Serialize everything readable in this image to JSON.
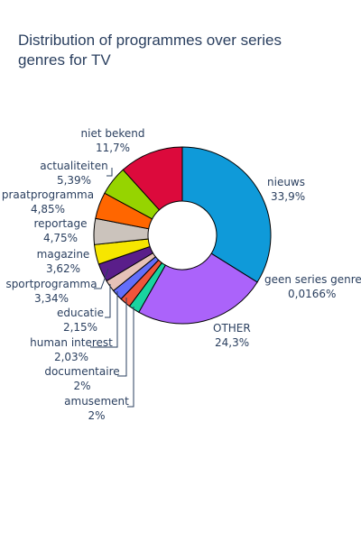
{
  "chart_data": {
    "type": "pie",
    "hole": true,
    "title": "Distribution of programmes over series genres for TV",
    "title_lines": [
      "Distribution of programmes over series",
      "genres for TV"
    ],
    "slices": [
      {
        "label": "nieuws",
        "value_text": "33,9%",
        "value": 33.9,
        "color": "#0f9ad9"
      },
      {
        "label": "geen series genre",
        "value_text": "0,0166%",
        "value": 0.0166,
        "color": "#ff0000"
      },
      {
        "label": "OTHER",
        "value_text": "24,3%",
        "value": 24.3,
        "color": "#ab63fa"
      },
      {
        "label": "amusement",
        "value_text": "2%",
        "value": 2.0,
        "color": "#19d3a0"
      },
      {
        "label": "documentaire",
        "value_text": "2%",
        "value": 2.0,
        "color": "#ef553b"
      },
      {
        "label": "human interest",
        "value_text": "2,03%",
        "value": 2.03,
        "color": "#636efa"
      },
      {
        "label": "educatie",
        "value_text": "2,15%",
        "value": 2.15,
        "color": "#e6c2b8"
      },
      {
        "label": "sportprogramma",
        "value_text": "3,34%",
        "value": 3.34,
        "color": "#5a1e8a"
      },
      {
        "label": "magazine",
        "value_text": "3,62%",
        "value": 3.62,
        "color": "#f6e600"
      },
      {
        "label": "reportage",
        "value_text": "4,75%",
        "value": 4.75,
        "color": "#cbc3bc"
      },
      {
        "label": "praatprogramma",
        "value_text": "4,85%",
        "value": 4.85,
        "color": "#ff6600"
      },
      {
        "label": "actualiteiten",
        "value_text": "5,39%",
        "value": 5.39,
        "color": "#96d400"
      },
      {
        "label": "niet bekend",
        "value_text": "11,7%",
        "value": 11.7,
        "color": "#dc0a3c"
      }
    ]
  }
}
